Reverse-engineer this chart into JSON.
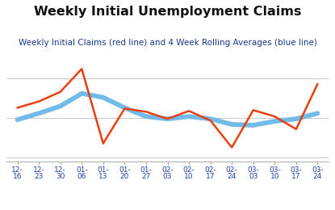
{
  "title": "Weekly Initial Unemployment Claims",
  "subtitle": "Weekly Initial Claims (red line) and 4 Week Rolling Averages (blue line)",
  "x_labels": [
    "12-\n16",
    "12-\n23",
    "12-\n30",
    "01-\n06",
    "01-\n13",
    "01-\n20",
    "01-\n27",
    "02-\n03",
    "02-\n10",
    "02-\n17",
    "02-\n24",
    "03-\n03",
    "03-\n10",
    "03-\n17",
    "03-\n24"
  ],
  "red_values": [
    263,
    271,
    283,
    312,
    218,
    262,
    258,
    249,
    259,
    247,
    213,
    260,
    252,
    236,
    293
  ],
  "blue_values": [
    248,
    256,
    265,
    281,
    276,
    263,
    252,
    249,
    252,
    249,
    242,
    241,
    246,
    249,
    256
  ],
  "red_color": "#e84010",
  "blue_color": "#72bae8",
  "bg_color": "#ffffff",
  "grid_color": "#c8c8c8",
  "title_color": "#111111",
  "subtitle_color": "#1a3a8a",
  "title_fontsize": 11.5,
  "subtitle_fontsize": 7.5,
  "tick_fontsize": 6.5,
  "tick_color": "#2244aa",
  "ylim_min": 195,
  "ylim_max": 330
}
